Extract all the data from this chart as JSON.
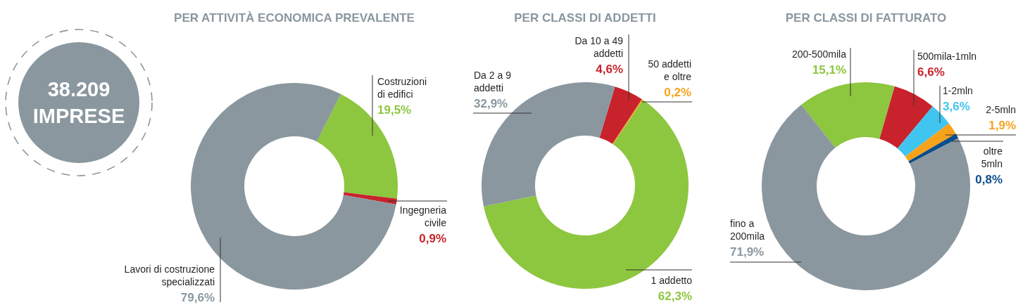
{
  "chart_data": [
    {
      "type": "other",
      "annotations": [
        "38.209",
        "IMPRESE"
      ]
    },
    {
      "type": "donut",
      "title": "PER ATTIVITÀ ECONOMICA PREVALENTE",
      "categories": [
        "Costruzioni di edifici",
        "Ingegneria civile",
        "Lavori di costruzione specializzati"
      ],
      "values": [
        19.5,
        0.9,
        79.6
      ],
      "colors": [
        "#8dc63f",
        "#c8232c",
        "#8a979f"
      ],
      "value_labels": [
        "19,5%",
        "0,9%",
        "79,6%"
      ]
    },
    {
      "type": "donut",
      "title": "PER CLASSI DI ADDETTI",
      "categories": [
        "Da 10 a 49 addetti",
        "50 addetti e oltre",
        "1 addetto",
        "Da 2 a 9 addetti"
      ],
      "values": [
        4.6,
        0.2,
        62.3,
        32.9
      ],
      "colors": [
        "#c8232c",
        "#f7a21b",
        "#8dc63f",
        "#8a979f"
      ],
      "value_labels": [
        "4,6%",
        "0,2%",
        "62,3%",
        "32,9%"
      ]
    },
    {
      "type": "donut",
      "title": "PER CLASSI DI FATTURATO",
      "categories": [
        "200-500mila",
        "500mila-1mln",
        "1-2mln",
        "2-5mln",
        "oltre 5mln",
        "fino a 200mila"
      ],
      "values": [
        15.1,
        6.6,
        3.6,
        1.9,
        0.8,
        71.9
      ],
      "colors": [
        "#8dc63f",
        "#c8232c",
        "#40c4f0",
        "#f7a21b",
        "#0a4d8c",
        "#8a979f"
      ],
      "value_labels": [
        "15,1%",
        "6,6%",
        "3,6%",
        "1,9%",
        "0,8%",
        "71,9%"
      ]
    }
  ]
}
